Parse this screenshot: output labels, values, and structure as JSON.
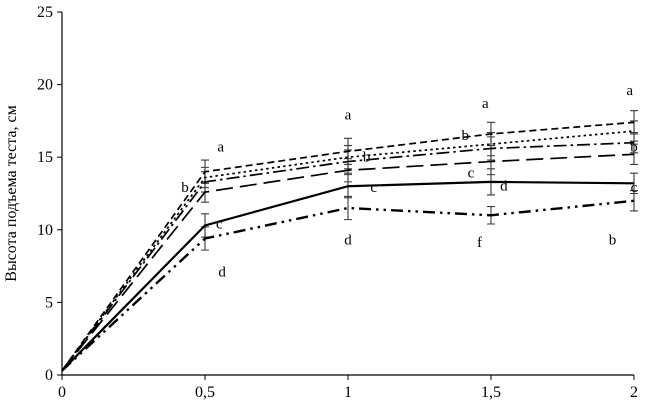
{
  "figure": {
    "ylabel": "Высота подъема теста, см"
  },
  "chart_data": {
    "type": "line",
    "title": "",
    "xlabel": "",
    "ylabel": "Высота подъема теста, см",
    "xlim": [
      0,
      2
    ],
    "ylim": [
      0,
      25
    ],
    "grid": false,
    "legend": false,
    "x": [
      0,
      0.5,
      1,
      1.5,
      2
    ],
    "x_tick_labels": [
      "0",
      "0,5",
      "1",
      "1,5",
      "2"
    ],
    "y_ticks": [
      0,
      5,
      10,
      15,
      20,
      25
    ],
    "y_tick_labels": [
      "0",
      "5",
      "10",
      "15",
      "20",
      "25"
    ],
    "line_color": "#000000",
    "error_bar_color": "#3a3a3a",
    "series": [
      {
        "style": "short-dash",
        "values": [
          0.3,
          14.0,
          15.4,
          16.6,
          17.4
        ],
        "errors": [
          0,
          0.8,
          0.9,
          0.8,
          0.8
        ]
      },
      {
        "style": "dotted",
        "values": [
          0.3,
          13.6,
          15.0,
          15.9,
          16.8
        ],
        "errors": [
          0,
          0.7,
          0.8,
          0.8,
          0.7
        ]
      },
      {
        "style": "dash-dot",
        "values": [
          0.3,
          13.3,
          14.7,
          15.6,
          16.0
        ],
        "errors": [
          0,
          0.7,
          0.8,
          0.8,
          0.7
        ]
      },
      {
        "style": "long-dash",
        "values": [
          0.3,
          12.6,
          14.1,
          14.7,
          15.2
        ],
        "errors": [
          0,
          0.7,
          0.8,
          0.9,
          0.7
        ]
      },
      {
        "style": "solid",
        "values": [
          0.3,
          10.3,
          13.0,
          13.3,
          13.2
        ],
        "errors": [
          0,
          0.8,
          0.8,
          0.9,
          0.7
        ]
      },
      {
        "style": "dash-dot-dot",
        "values": [
          0.3,
          9.4,
          11.5,
          11.0,
          12.0
        ],
        "errors": [
          0,
          0.8,
          0.8,
          0.6,
          0.7
        ]
      }
    ],
    "annotations": [
      {
        "t": "a",
        "x": 0.555,
        "y": 15.4
      },
      {
        "t": "b",
        "x": 0.43,
        "y": 12.6
      },
      {
        "t": "c",
        "x": 0.55,
        "y": 10.1
      },
      {
        "t": "d",
        "x": 0.56,
        "y": 6.8
      },
      {
        "t": "a",
        "x": 1.0,
        "y": 17.6
      },
      {
        "t": "b",
        "x": 1.065,
        "y": 14.7
      },
      {
        "t": "c",
        "x": 1.09,
        "y": 12.6
      },
      {
        "t": "d",
        "x": 1.0,
        "y": 9.0
      },
      {
        "t": "a",
        "x": 1.48,
        "y": 18.4
      },
      {
        "t": "b",
        "x": 1.41,
        "y": 16.2
      },
      {
        "t": "c",
        "x": 1.43,
        "y": 13.6
      },
      {
        "t": "d",
        "x": 1.545,
        "y": 12.7
      },
      {
        "t": "f",
        "x": 1.46,
        "y": 8.8
      },
      {
        "t": "a",
        "x": 1.985,
        "y": 19.3
      },
      {
        "t": "b",
        "x": 2.0,
        "y": 15.4
      },
      {
        "t": "c",
        "x": 2.0,
        "y": 12.6
      },
      {
        "t": "b",
        "x": 1.925,
        "y": 9.0
      }
    ]
  }
}
